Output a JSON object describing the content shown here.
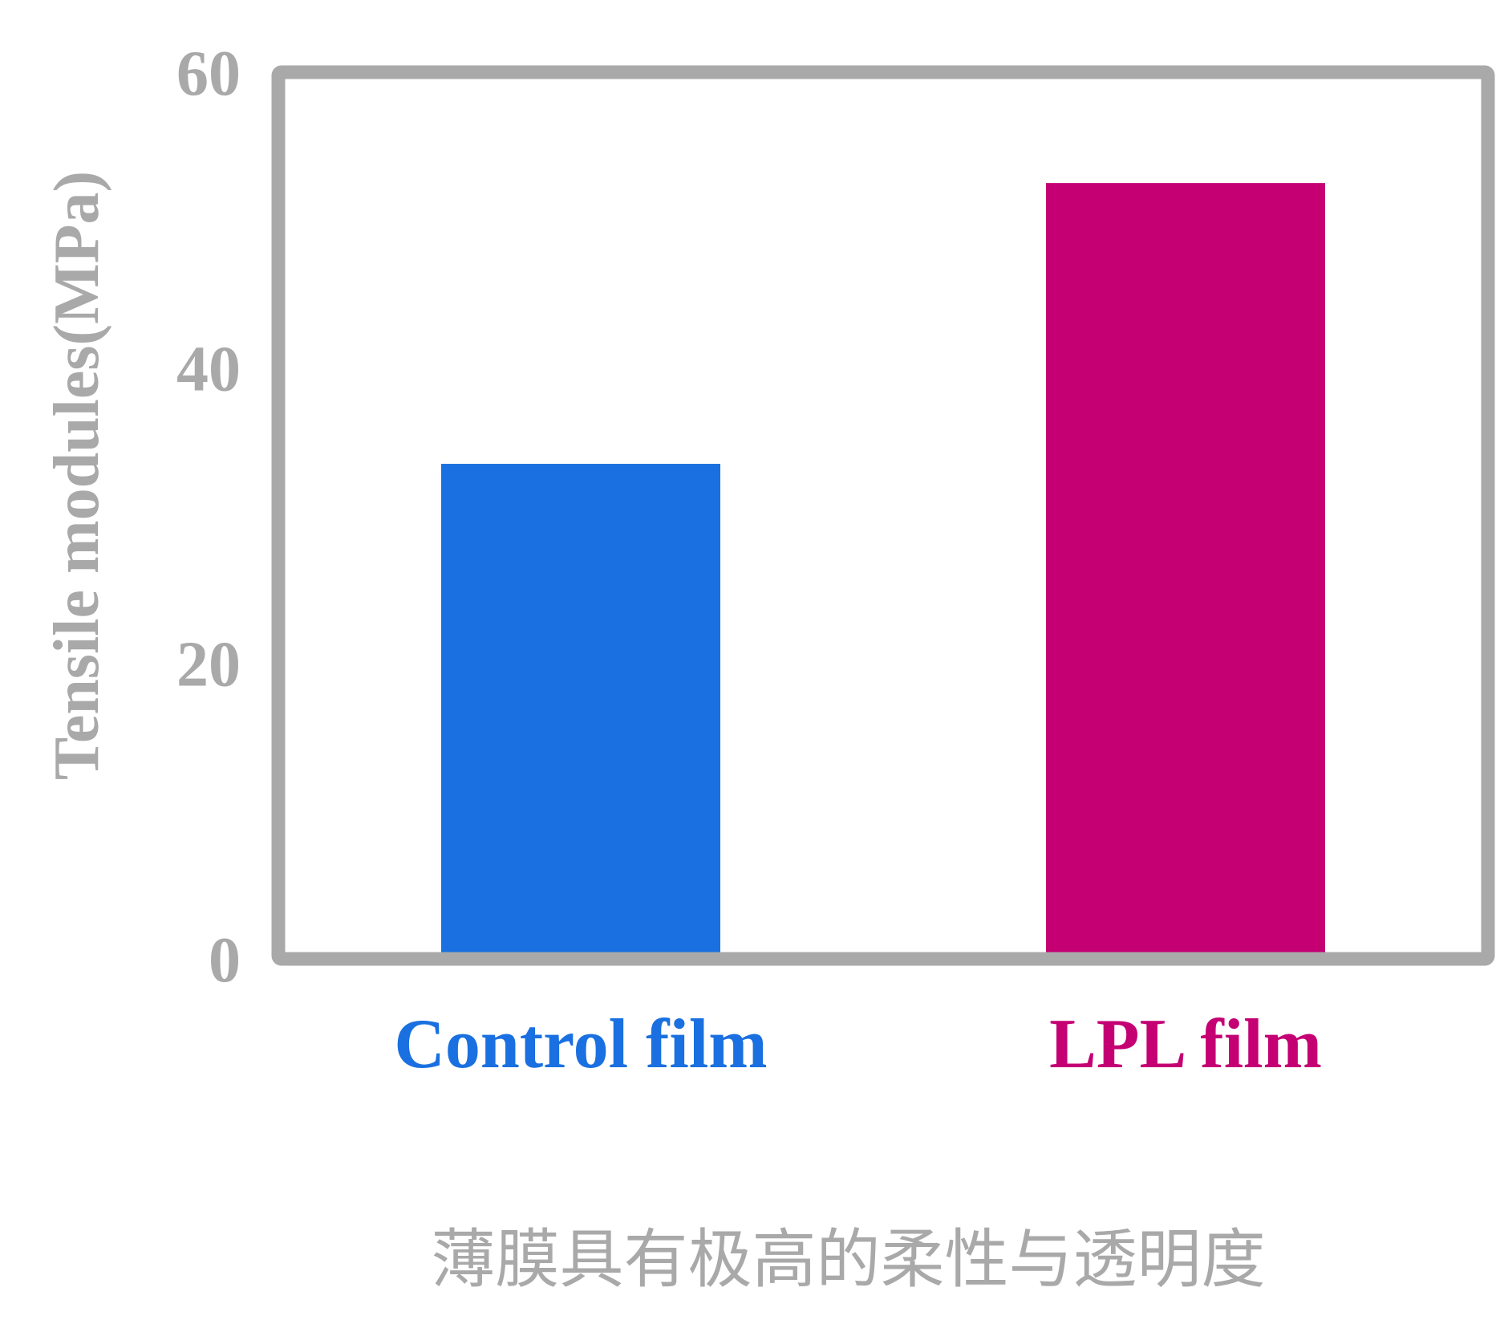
{
  "chart_data": {
    "type": "bar",
    "categories": [
      "Control film",
      "LPL film"
    ],
    "values": [
      33.5,
      52.5
    ],
    "ylabel": "Tensile modules(MPa)",
    "xlabel": "",
    "title": "",
    "ylim": [
      0,
      60
    ],
    "yticks": [
      0,
      20,
      40,
      60
    ],
    "grid": false,
    "legend": "none",
    "colors": [
      "#1a70e0",
      "#c40073"
    ],
    "frame_color": "#a9a9a9"
  },
  "caption": "薄膜具有极高的柔性与透明度"
}
